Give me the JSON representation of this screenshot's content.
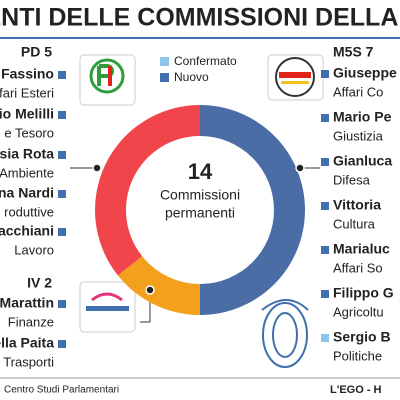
{
  "chart_data": {
    "type": "donut",
    "title": "IDENTI DELLE COMMISSIONI DELLA CA",
    "categories": [
      "M5S 7",
      "IV 2",
      "PD 5"
    ],
    "values": [
      7,
      2,
      5
    ],
    "colors": [
      "#4a6da6",
      "#f3a11c",
      "#f0464b"
    ],
    "center_value": 14,
    "center_text": [
      "Commissioni",
      "permanenti"
    ],
    "legend": [
      {
        "name": "Confermato",
        "color": "#8ec6ea"
      },
      {
        "name": "Nuovo",
        "color": "#3f70ad"
      }
    ]
  },
  "members": {
    "left": [
      {
        "name": "o Fassino",
        "role": "ffari Esteri",
        "status": 1
      },
      {
        "name": "io Melilli",
        "role": "e Tesoro",
        "status": 1
      },
      {
        "name": "ssia Rota",
        "role": "Ambiente",
        "status": 1
      },
      {
        "name": "ina Nardi",
        "role": "roduttive",
        "status": 1
      },
      {
        "name": "racchiani",
        "role": "Lavoro",
        "status": 1
      },
      {
        "name": "Marattin",
        "role": "Finanze",
        "status": 1
      },
      {
        "name": "ella Paita",
        "role": "Trasporti",
        "status": 1
      }
    ],
    "right": [
      {
        "name": "Giuseppe",
        "role": "Affari Co",
        "status": 1
      },
      {
        "name": "Mario Pe",
        "role": "Giustizia",
        "status": 1
      },
      {
        "name": "Gianluca",
        "role": "Difesa",
        "status": 1
      },
      {
        "name": "Vittoria",
        "role": "Cultura",
        "status": 1
      },
      {
        "name": "Marialuc",
        "role": "Affari So",
        "status": 1
      },
      {
        "name": "Filippo G",
        "role": "Agricoltu",
        "status": 1
      },
      {
        "name": "Sergio B",
        "role": "Politiche",
        "status": 0
      }
    ]
  },
  "footer": {
    "source": "Centro Studi Parlamentari",
    "brand": "L'EGO - H"
  }
}
